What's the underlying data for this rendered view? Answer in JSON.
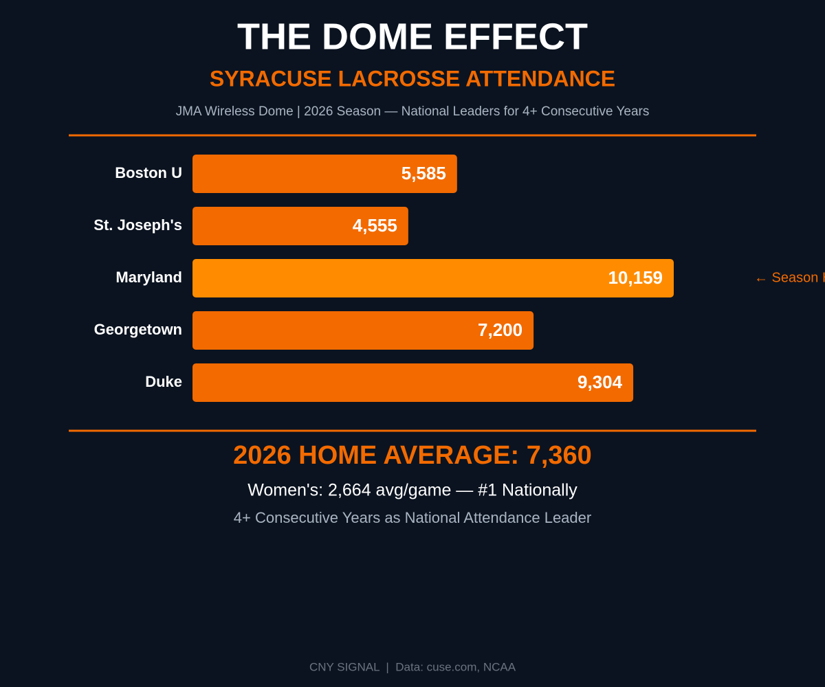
{
  "chart_data": {
    "type": "bar",
    "orientation": "horizontal",
    "title": "THE DOME EFFECT",
    "subtitle": "SYRACUSE LACROSSE ATTENDANCE",
    "caption": "JMA Wireless Dome | 2026 Season — National Leaders for 4+ Consecutive Years",
    "categories": [
      "Boston U",
      "St. Joseph's",
      "Maryland",
      "Georgetown",
      "Duke"
    ],
    "values": [
      5585,
      4555,
      10159,
      7200,
      9304
    ],
    "value_labels": [
      "5,585",
      "4,555",
      "10,159",
      "7,200",
      "9,304"
    ],
    "colors": [
      "#f26a00",
      "#f26a00",
      "#ff8c00",
      "#f26a00",
      "#f26a00"
    ],
    "annotations": [
      {
        "text": "← Season High",
        "category": "Maryland"
      }
    ],
    "summary": {
      "headline": "2026 HOME AVERAGE: 7,360",
      "note": "Women's: 2,664 avg/game — #1 Nationally",
      "tagline": "4+ Consecutive Years as National Attendance Leader"
    },
    "footer": "CNY SIGNAL  |  Data: cuse.com, NCAA"
  }
}
